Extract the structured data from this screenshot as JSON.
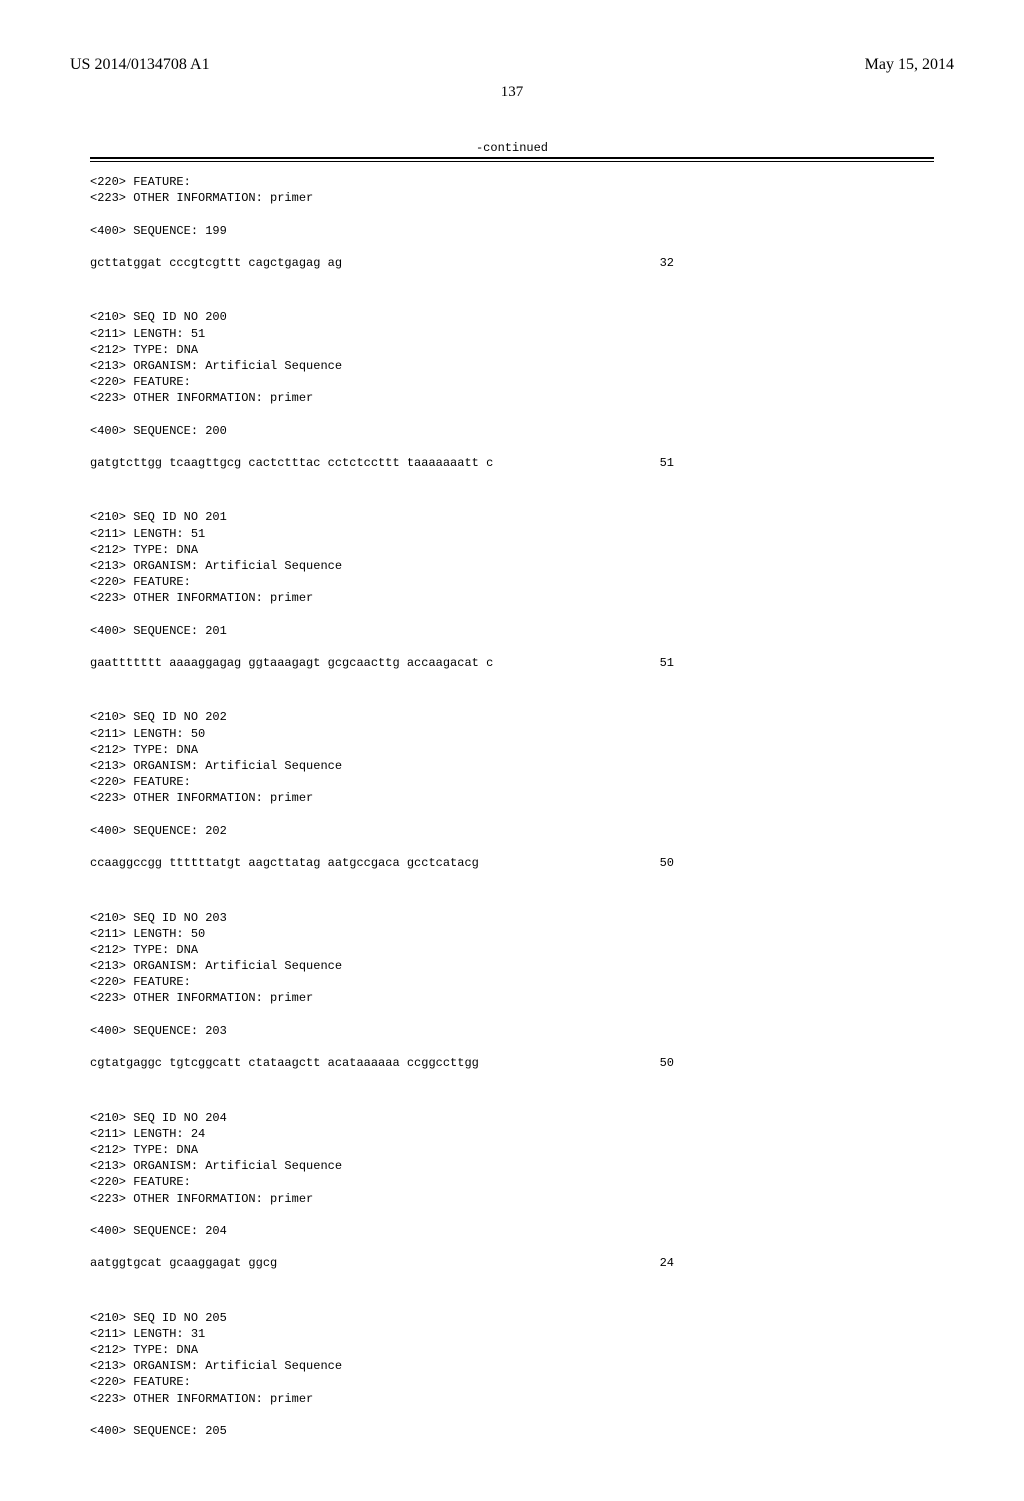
{
  "header": {
    "pub_number": "US 2014/0134708 A1",
    "pub_date": "May 15, 2014",
    "page_number": "137"
  },
  "continued_label": "-continued",
  "blocks": [
    {
      "prelines": [
        "<220> FEATURE:",
        "<223> OTHER INFORMATION: primer",
        "",
        "<400> SEQUENCE: 199"
      ],
      "sequence": "gcttatggat cccgtcgttt cagctgagag ag",
      "length": "32"
    },
    {
      "prelines": [
        "<210> SEQ ID NO 200",
        "<211> LENGTH: 51",
        "<212> TYPE: DNA",
        "<213> ORGANISM: Artificial Sequence",
        "<220> FEATURE:",
        "<223> OTHER INFORMATION: primer",
        "",
        "<400> SEQUENCE: 200"
      ],
      "sequence": "gatgtcttgg tcaagttgcg cactctttac cctctccttt taaaaaaatt c",
      "length": "51"
    },
    {
      "prelines": [
        "<210> SEQ ID NO 201",
        "<211> LENGTH: 51",
        "<212> TYPE: DNA",
        "<213> ORGANISM: Artificial Sequence",
        "<220> FEATURE:",
        "<223> OTHER INFORMATION: primer",
        "",
        "<400> SEQUENCE: 201"
      ],
      "sequence": "gaattttttt aaaaggagag ggtaaagagt gcgcaacttg accaagacat c",
      "length": "51"
    },
    {
      "prelines": [
        "<210> SEQ ID NO 202",
        "<211> LENGTH: 50",
        "<212> TYPE: DNA",
        "<213> ORGANISM: Artificial Sequence",
        "<220> FEATURE:",
        "<223> OTHER INFORMATION: primer",
        "",
        "<400> SEQUENCE: 202"
      ],
      "sequence": "ccaaggccgg ttttttatgt aagcttatag aatgccgaca gcctcatacg",
      "length": "50"
    },
    {
      "prelines": [
        "<210> SEQ ID NO 203",
        "<211> LENGTH: 50",
        "<212> TYPE: DNA",
        "<213> ORGANISM: Artificial Sequence",
        "<220> FEATURE:",
        "<223> OTHER INFORMATION: primer",
        "",
        "<400> SEQUENCE: 203"
      ],
      "sequence": "cgtatgaggc tgtcggcatt ctataagctt acataaaaaa ccggccttgg",
      "length": "50"
    },
    {
      "prelines": [
        "<210> SEQ ID NO 204",
        "<211> LENGTH: 24",
        "<212> TYPE: DNA",
        "<213> ORGANISM: Artificial Sequence",
        "<220> FEATURE:",
        "<223> OTHER INFORMATION: primer",
        "",
        "<400> SEQUENCE: 204"
      ],
      "sequence": "aatggtgcat gcaaggagat ggcg",
      "length": "24"
    },
    {
      "prelines": [
        "<210> SEQ ID NO 205",
        "<211> LENGTH: 31",
        "<212> TYPE: DNA",
        "<213> ORGANISM: Artificial Sequence",
        "<220> FEATURE:",
        "<223> OTHER INFORMATION: primer",
        "",
        "<400> SEQUENCE: 205"
      ],
      "sequence": "",
      "length": ""
    }
  ]
}
